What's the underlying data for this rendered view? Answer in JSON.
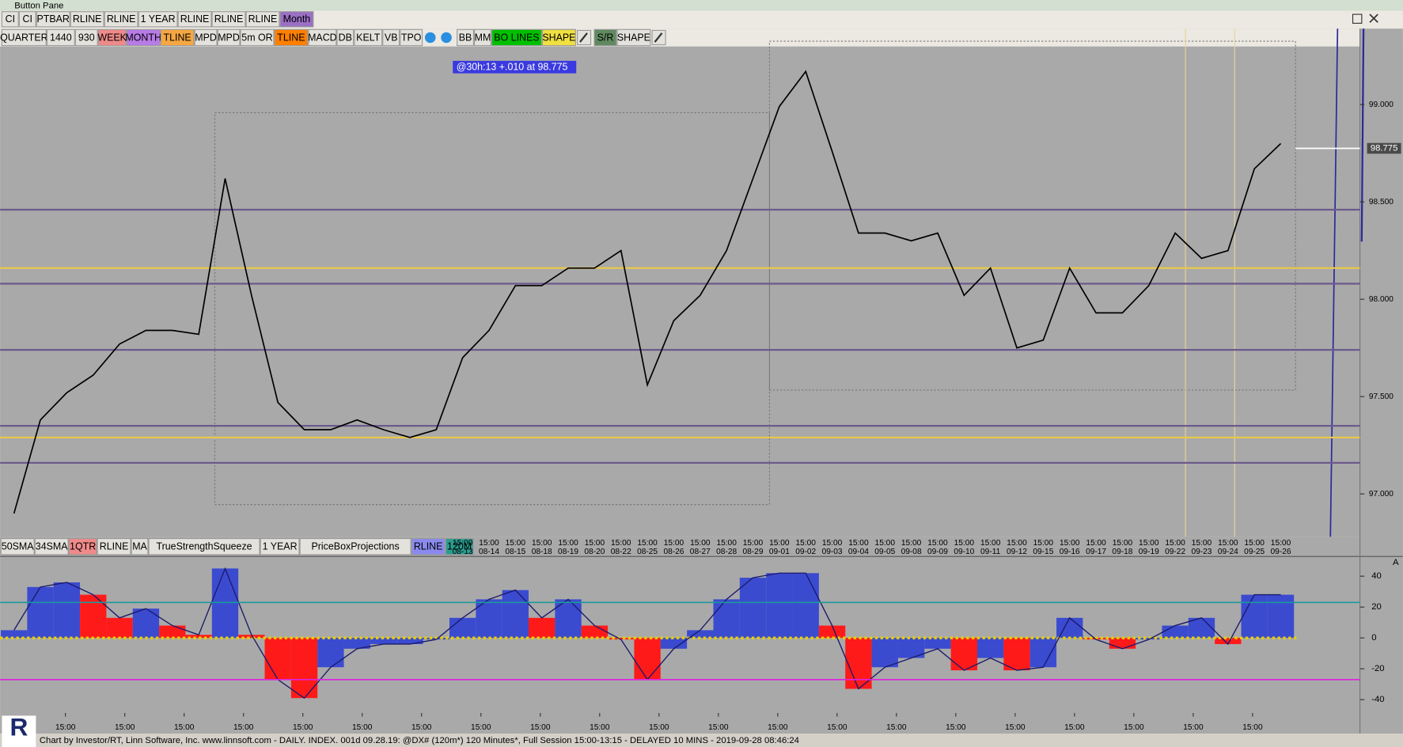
{
  "window_title": "Button Pane",
  "toolbar1": [
    {
      "label": "CI"
    },
    {
      "label": "CI"
    },
    {
      "label": "PTBAR"
    },
    {
      "label": "RLINE"
    },
    {
      "label": "RLINE"
    },
    {
      "label": "1 YEAR"
    },
    {
      "label": "RLINE"
    },
    {
      "label": "RLINE"
    },
    {
      "label": "RLINE"
    },
    {
      "label": "Month",
      "color": "#9a6fc4"
    }
  ],
  "toolbar2": [
    {
      "label": "QUARTER"
    },
    {
      "label": "1440"
    },
    {
      "label": "930"
    },
    {
      "label": "WEEK",
      "color": "#f08a8a"
    },
    {
      "label": "MONTH",
      "color": "#b77be6"
    },
    {
      "label": "TLINE",
      "color": "#f5a742"
    },
    {
      "label": "MPD"
    },
    {
      "label": "MPD"
    },
    {
      "label": "5m OR"
    },
    {
      "label": "TLINE",
      "color": "#ff7f00"
    },
    {
      "label": "MACD"
    },
    {
      "label": "DB"
    },
    {
      "label": "KELT"
    },
    {
      "label": "VB"
    },
    {
      "label": "TPO"
    },
    {
      "label": "BB"
    },
    {
      "label": "MM"
    },
    {
      "label": "BO LINES",
      "color": "#00c000"
    },
    {
      "label": "SHAPE",
      "color": "#f0e040"
    },
    {
      "label": "S/R",
      "color": "#5f8a5f"
    },
    {
      "label": "SHAPE"
    }
  ],
  "indicator_bar": [
    {
      "label": "50SMA"
    },
    {
      "label": "34SMA"
    },
    {
      "label": "1QTR",
      "color": "#f08a8a"
    },
    {
      "label": "RLINE"
    },
    {
      "label": "MA"
    },
    {
      "label": "TrueStrengthSqueeze"
    },
    {
      "label": "1 YEAR"
    },
    {
      "label": "PriceBoxProjections"
    },
    {
      "label": "RLINE",
      "color": "#8a8aee"
    },
    {
      "label": "120M",
      "color": "#2a9d8f"
    }
  ],
  "annotation": "@30h:13  +.010 at 98.775",
  "chart_data": [
    {
      "type": "line",
      "time_label": "15:00",
      "categories": [
        null,
        null,
        null,
        null,
        null,
        null,
        null,
        null,
        null,
        null,
        null,
        null,
        null,
        null,
        null,
        null,
        null,
        "08-13",
        "08-14",
        "08-15",
        "08-18",
        "08-19",
        "08-20",
        "08-22",
        "08-25",
        "08-26",
        "08-27",
        "08-28",
        "08-29",
        "09-01",
        "09-02",
        "09-03",
        "09-04",
        "09-05",
        "09-08",
        "09-09",
        "09-10",
        "09-11",
        "09-12",
        "09-15",
        "09-16",
        "09-17",
        "09-18",
        "09-19",
        "09-22",
        "09-23",
        "09-24",
        "09-25",
        "09-26"
      ],
      "series": [
        {
          "color": "#000000",
          "values": [
            96.9,
            97.38,
            97.52,
            97.61,
            97.77,
            97.84,
            97.84,
            97.82,
            98.62,
            98.02,
            97.47,
            97.33,
            97.33,
            97.38,
            97.33,
            97.29,
            97.33,
            97.7,
            97.84,
            98.07,
            98.07,
            98.16,
            98.16,
            98.25,
            97.56,
            97.89,
            98.02,
            98.25,
            98.62,
            98.99,
            99.17,
            98.76,
            98.34,
            98.34,
            98.3,
            98.34,
            98.02,
            98.16,
            97.75,
            97.79,
            98.16,
            97.93,
            97.93,
            98.07,
            98.34,
            98.21,
            98.25,
            98.67,
            98.8
          ]
        }
      ],
      "levels": [
        {
          "value": 98.46,
          "color": "#6c5a8c"
        },
        {
          "value": 98.08,
          "color": "#6c5a8c"
        },
        {
          "value": 97.74,
          "color": "#6c5a8c"
        },
        {
          "value": 97.35,
          "color": "#6c5a8c"
        },
        {
          "value": 97.16,
          "color": "#6c5a8c"
        },
        {
          "value": 98.16,
          "color": "#e8c84a"
        },
        {
          "value": 97.29,
          "color": "#e8c84a"
        }
      ],
      "ylim": [
        96.78,
        99.39
      ],
      "yticks": [
        {
          "value": 99,
          "label": "99.000"
        },
        {
          "value": 98.5,
          "label": "98.500"
        },
        {
          "value": 98,
          "label": "98.000"
        },
        {
          "value": 97.5,
          "label": "97.500"
        },
        {
          "value": 97,
          "label": "97.000"
        }
      ],
      "last_price": {
        "value": 98.775,
        "label": "98.775"
      }
    },
    {
      "type": "bar",
      "name": "A",
      "values": [
        5,
        33,
        36,
        28,
        13,
        19,
        8,
        2,
        45,
        2,
        -27,
        -39,
        -19,
        -7,
        -4,
        -4,
        -1,
        13,
        25,
        31,
        13,
        25,
        8,
        -1,
        -27,
        -7,
        5,
        25,
        39,
        42,
        42,
        8,
        -33,
        -19,
        -13,
        -7,
        -21,
        -13,
        -21,
        -19,
        13,
        -1,
        -7,
        -1,
        8,
        13,
        -4,
        28,
        28
      ],
      "rise_color": "#3b4bd0",
      "fall_color": "#ff1a1a",
      "levels": [
        {
          "value": 23,
          "color": "#1a9a9a"
        },
        {
          "value": -27,
          "color": "#e020e0"
        }
      ],
      "ylim": [
        -47.5,
        52.8
      ],
      "yticks": [
        40,
        20,
        0,
        -20,
        -40
      ],
      "x_labels": [
        "15:00",
        "15:00",
        "15:00",
        "15:00",
        "15:00",
        "15:00",
        "15:00",
        "15:00",
        "15:00",
        "15:00",
        "15:00",
        "15:00",
        "15:00",
        "15:00",
        "15:00",
        "15:00",
        "15:00",
        "15:00",
        "15:00",
        "15:00",
        "15:00"
      ]
    }
  ],
  "logo": "R",
  "footer": "Chart by Investor/RT, Linn Software, Inc. www.linnsoft.com - DAILY. INDEX. 001d  09.28.19: @DX# (120m*) 120 Minutes*, Full Session 15:00-13:15 - DELAYED 10 MINS - 2019-09-28 08:46:24"
}
